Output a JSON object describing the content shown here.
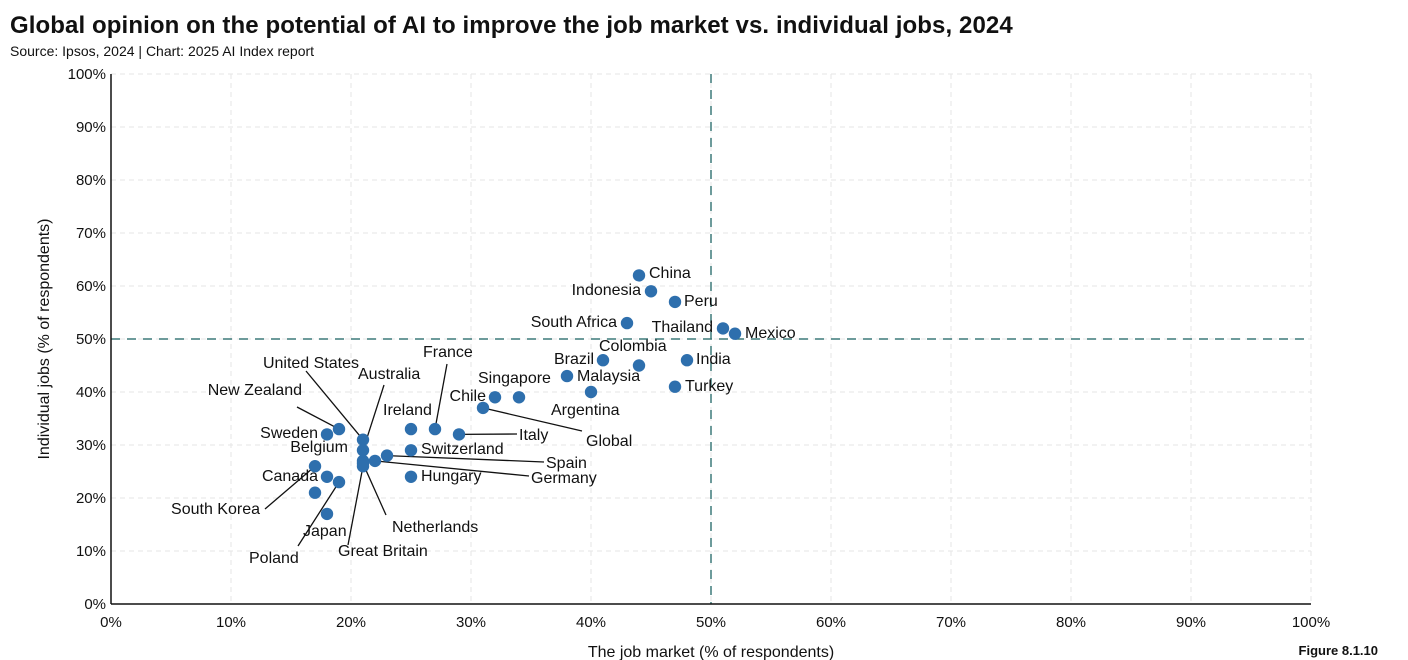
{
  "header": {
    "title": "Global opinion on the potential of AI to improve the job market vs. individual jobs, 2024",
    "source": "Source: Ipsos, 2024 | Chart: 2025 AI Index report",
    "figure": "Figure 8.1.10"
  },
  "colors": {
    "point": "#2e6fad",
    "reference_line": "#3d7a7a",
    "grid": "#e6e6e6",
    "axis": "#111111"
  },
  "chart_data": {
    "type": "scatter",
    "xlabel": "The job market (% of respondents)",
    "ylabel": "Individual jobs (% of respondents)",
    "xlim": [
      0,
      100
    ],
    "ylim": [
      0,
      100
    ],
    "x_ticks": [
      "0%",
      "10%",
      "20%",
      "30%",
      "40%",
      "50%",
      "60%",
      "70%",
      "80%",
      "90%",
      "100%"
    ],
    "y_ticks": [
      "0%",
      "10%",
      "20%",
      "30%",
      "40%",
      "50%",
      "60%",
      "70%",
      "80%",
      "90%",
      "100%"
    ],
    "grid": true,
    "reference_lines": {
      "x": 50,
      "y": 50,
      "style": "dashed"
    },
    "points": [
      {
        "label": "China",
        "x": 44,
        "y": 62
      },
      {
        "label": "Indonesia",
        "x": 45,
        "y": 59
      },
      {
        "label": "Peru",
        "x": 47,
        "y": 57
      },
      {
        "label": "South Africa",
        "x": 43,
        "y": 53
      },
      {
        "label": "Thailand",
        "x": 51,
        "y": 52
      },
      {
        "label": "Mexico",
        "x": 52,
        "y": 51
      },
      {
        "label": "India",
        "x": 48,
        "y": 46
      },
      {
        "label": "Brazil",
        "x": 41,
        "y": 46
      },
      {
        "label": "Colombia",
        "x": 44,
        "y": 45
      },
      {
        "label": "Malaysia",
        "x": 38,
        "y": 43
      },
      {
        "label": "Turkey",
        "x": 47,
        "y": 41
      },
      {
        "label": "Argentina",
        "x": 40,
        "y": 40
      },
      {
        "label": "Singapore",
        "x": 34,
        "y": 39
      },
      {
        "label": "Chile",
        "x": 32,
        "y": 39
      },
      {
        "label": "Global",
        "x": 31,
        "y": 37
      },
      {
        "label": "France",
        "x": 27,
        "y": 33
      },
      {
        "label": "Ireland",
        "x": 25,
        "y": 33
      },
      {
        "label": "Italy",
        "x": 29,
        "y": 32
      },
      {
        "label": "Switzerland",
        "x": 25,
        "y": 29
      },
      {
        "label": "Hungary",
        "x": 25,
        "y": 24
      },
      {
        "label": "Spain",
        "x": 23,
        "y": 28
      },
      {
        "label": "Germany",
        "x": 22,
        "y": 27
      },
      {
        "label": "United States",
        "x": 21,
        "y": 31
      },
      {
        "label": "Australia",
        "x": 21,
        "y": 29
      },
      {
        "label": "Belgium",
        "x": 21,
        "y": 27
      },
      {
        "label": "Netherlands",
        "x": 21,
        "y": 26.5
      },
      {
        "label": "Great Britain",
        "x": 21,
        "y": 26
      },
      {
        "label": "New Zealand",
        "x": 19,
        "y": 33
      },
      {
        "label": "Sweden",
        "x": 18,
        "y": 32
      },
      {
        "label": "Canada",
        "x": 18,
        "y": 24
      },
      {
        "label": "Poland",
        "x": 19,
        "y": 23
      },
      {
        "label": "South Korea",
        "x": 17,
        "y": 26
      },
      {
        "label": "Japan",
        "x": 17,
        "y": 21
      },
      {
        "label": "",
        "x": 18,
        "y": 17
      }
    ]
  }
}
